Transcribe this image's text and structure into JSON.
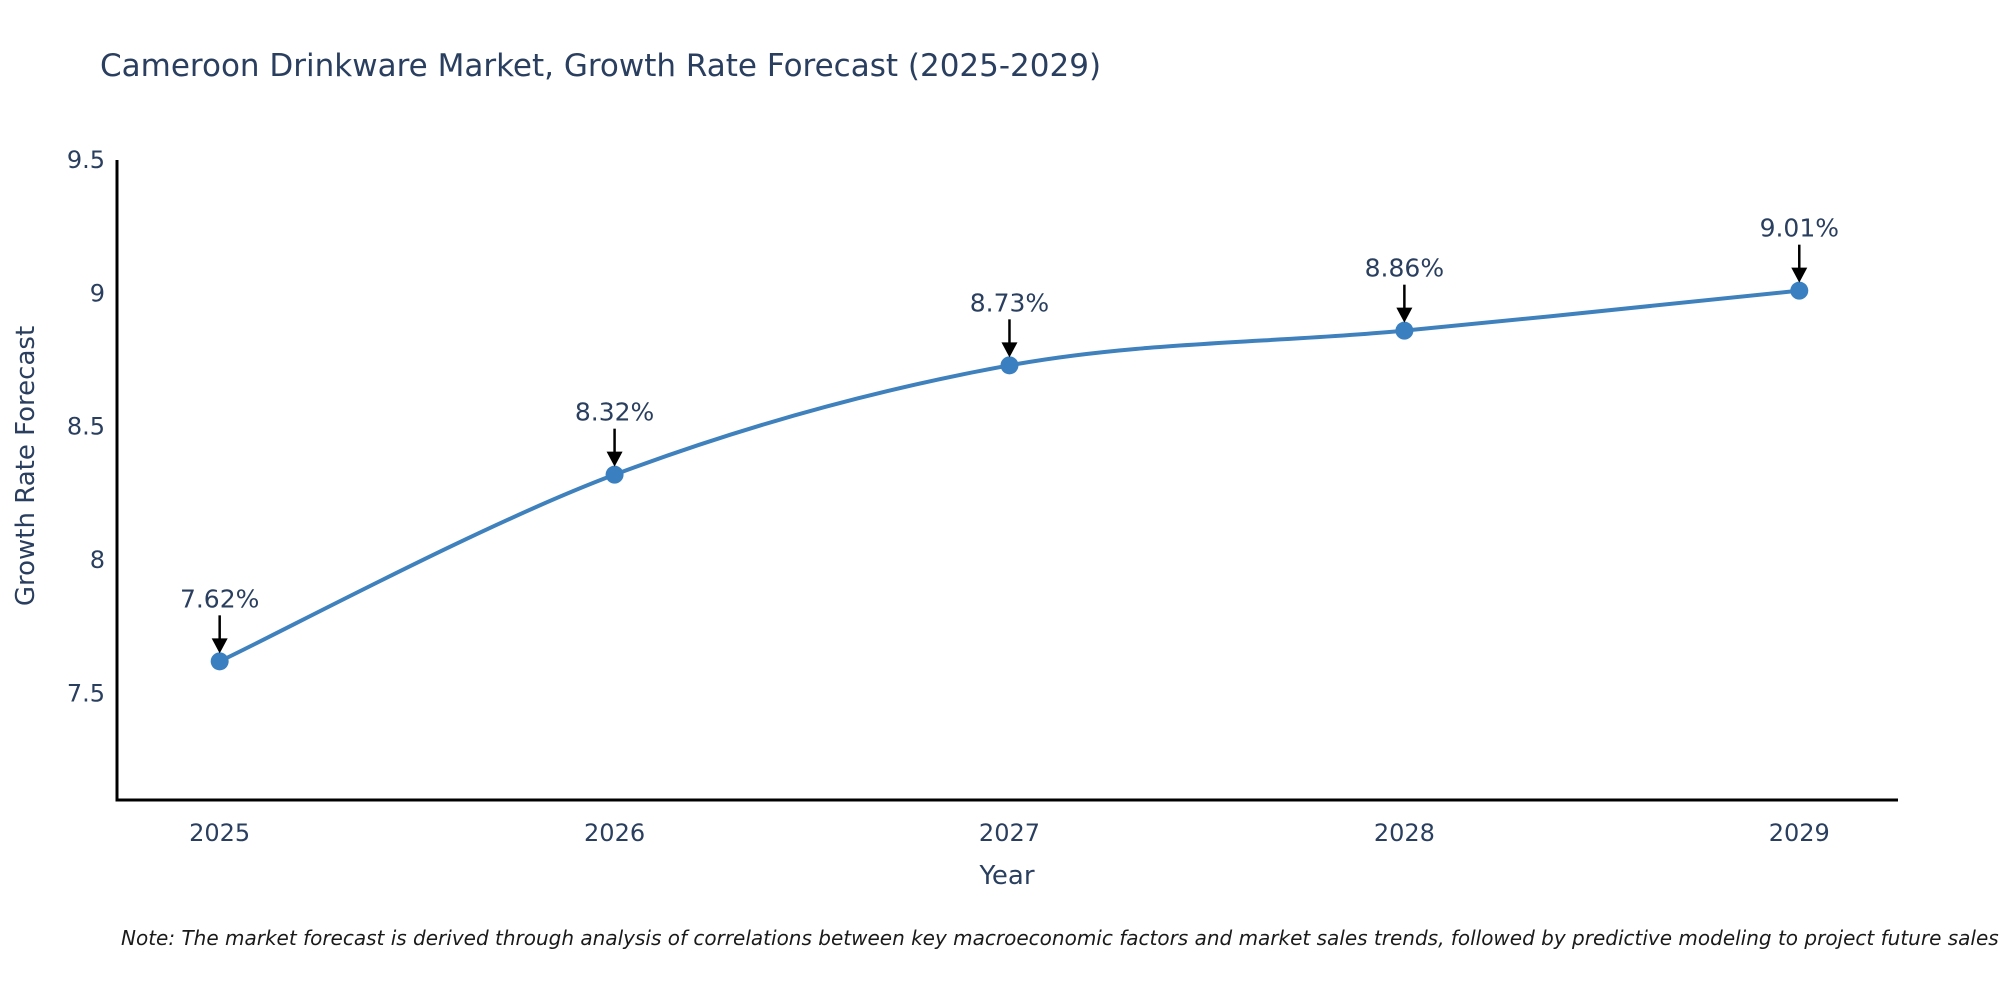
{
  "title": "Cameroon Drinkware Market, Growth Rate Forecast (2025-2029)",
  "note": "Note: The market forecast is derived through analysis of correlations between key macroeconomic factors and market sales trends, followed by predictive modeling to project future sales",
  "chart_data": {
    "type": "line",
    "title": "Cameroon Drinkware Market, Growth Rate Forecast (2025-2029)",
    "xlabel": "Year",
    "ylabel": "Growth Rate Forecast",
    "x": [
      2025,
      2026,
      2027,
      2028,
      2029
    ],
    "y": [
      7.62,
      8.32,
      8.73,
      8.86,
      9.01
    ],
    "point_labels": [
      "7.62%",
      "8.32%",
      "8.73%",
      "8.86%",
      "9.01%"
    ],
    "xtick_labels": [
      "2025",
      "2026",
      "2027",
      "2028",
      "2029"
    ],
    "xtick_values": [
      2025,
      2026,
      2027,
      2028,
      2029
    ],
    "ytick_labels": [
      "7.5",
      "8",
      "8.5",
      "9",
      "9.5"
    ],
    "ytick_values": [
      7.5,
      8,
      8.5,
      9,
      9.5
    ],
    "xlim": [
      2024.74,
      2029.25
    ],
    "ylim": [
      7.1,
      9.5
    ],
    "grid": false,
    "legend": "none",
    "line_shape": "spline",
    "annotation_arrows": true,
    "colors": {
      "line": "#3f81bd",
      "marker": "#3a80c1",
      "axis": "#000000",
      "text": "#2a3f5f",
      "arrow": "#000000",
      "note_text": "#1a1a1a",
      "background": "#ffffff"
    }
  }
}
